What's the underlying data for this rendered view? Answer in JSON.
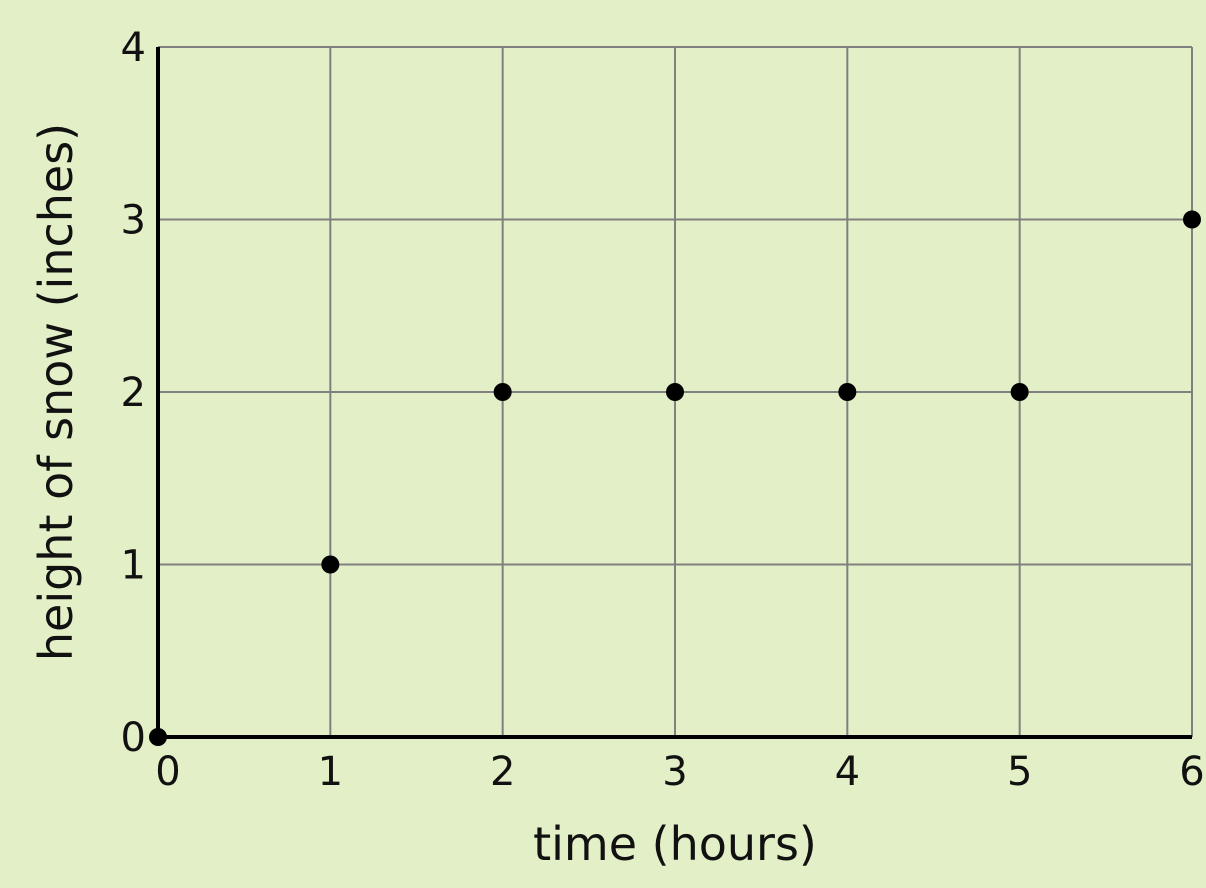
{
  "chart_data": {
    "type": "scatter",
    "title": "",
    "xlabel": "time (hours)",
    "ylabel": "height of snow (inches)",
    "xlim": [
      0,
      6
    ],
    "ylim": [
      0,
      4
    ],
    "xticks": [
      "0",
      "1",
      "2",
      "3",
      "4",
      "5",
      "6"
    ],
    "yticks": [
      "0",
      "1",
      "2",
      "3",
      "4"
    ],
    "grid": true,
    "points": [
      {
        "x": 0,
        "y": 0
      },
      {
        "x": 1,
        "y": 1
      },
      {
        "x": 2,
        "y": 2
      },
      {
        "x": 3,
        "y": 2
      },
      {
        "x": 4,
        "y": 2
      },
      {
        "x": 5,
        "y": 2
      },
      {
        "x": 6,
        "y": 3
      }
    ],
    "colors": {
      "background": "#e3efc6",
      "grid": "#808080",
      "axis": "#000000",
      "point": "#000000"
    }
  }
}
